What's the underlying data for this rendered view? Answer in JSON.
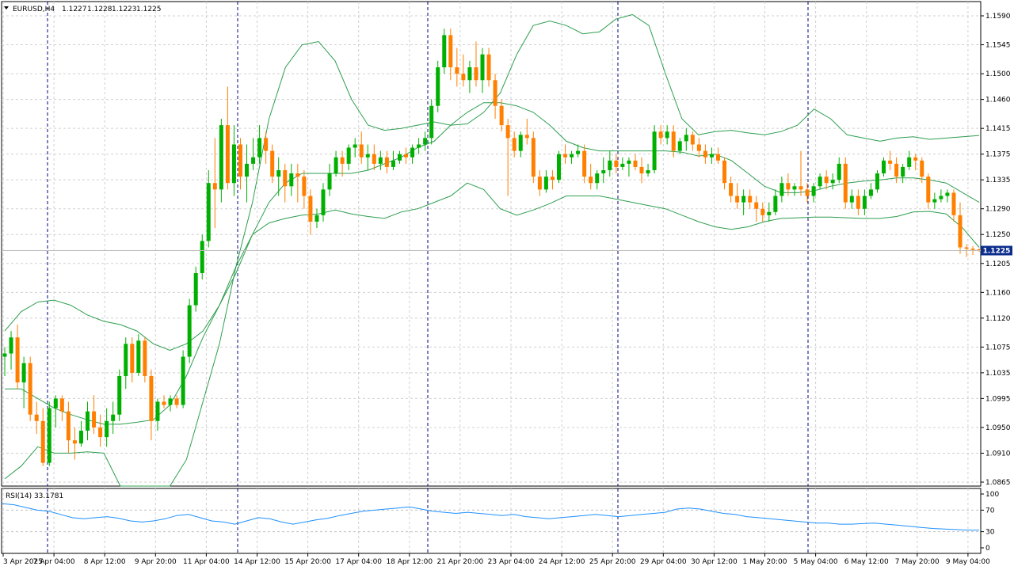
{
  "chart_data": [
    {
      "type": "candlestick",
      "symbol_label": "EURUSD,H4",
      "ohlc_header": [
        "1.1227",
        "1.1228",
        "1.1223",
        "1.1225"
      ],
      "current_price": "1.1225",
      "ylim": [
        1.0865,
        1.159
      ],
      "y_ticks": [
        "1.1590",
        "1.1545",
        "1.1500",
        "1.1460",
        "1.1415",
        "1.1375",
        "1.1335",
        "1.1290",
        "1.1250",
        "1.1205",
        "1.1160",
        "1.1120",
        "1.1075",
        "1.1035",
        "1.0995",
        "1.0950",
        "1.0910",
        "1.0865"
      ],
      "x_ticks": [
        "3 Apr 2025",
        "7 Apr 04:00",
        "8 Apr 12:00",
        "9 Apr 20:00",
        "11 Apr 04:00",
        "14 Apr 12:00",
        "15 Apr 20:00",
        "17 Apr 04:00",
        "18 Apr 12:00",
        "21 Apr 20:00",
        "23 Apr 04:00",
        "24 Apr 12:00",
        "25 Apr 20:00",
        "29 Apr 04:00",
        "30 Apr 12:00",
        "1 May 20:00",
        "5 May 04:00",
        "6 May 12:00",
        "7 May 20:00",
        "9 May 04:00"
      ],
      "grid": true,
      "colors": {
        "bull": "#00b000",
        "bear": "#ff7f00",
        "bands": "#2e9e4f",
        "rsi": "#1e90ff",
        "price_tag": "#0c2d8c"
      },
      "candles": [
        [
          1.106,
          1.1075,
          1.103,
          1.1065
        ],
        [
          1.1065,
          1.11,
          1.104,
          1.109
        ],
        [
          1.109,
          1.111,
          1.101,
          1.102
        ],
        [
          1.102,
          1.106,
          1.098,
          1.105
        ],
        [
          1.105,
          1.106,
          1.096,
          1.097
        ],
        [
          1.097,
          1.099,
          1.094,
          1.096
        ],
        [
          1.096,
          1.098,
          1.089,
          1.0895
        ],
        [
          1.0895,
          1.099,
          1.089,
          1.098
        ],
        [
          1.098,
          1.1,
          1.095,
          1.0995
        ],
        [
          1.0995,
          1.1,
          1.096,
          1.0975
        ],
        [
          1.0975,
          1.099,
          1.091,
          1.093
        ],
        [
          1.093,
          1.095,
          1.09,
          1.0925
        ],
        [
          1.0925,
          1.096,
          1.092,
          1.0945
        ],
        [
          1.0945,
          1.099,
          1.093,
          1.0975
        ],
        [
          1.0975,
          1.1,
          1.094,
          1.095
        ],
        [
          1.095,
          1.097,
          1.092,
          1.0935
        ],
        [
          1.0935,
          1.098,
          1.092,
          1.096
        ],
        [
          1.096,
          1.099,
          1.094,
          1.097
        ],
        [
          1.097,
          1.104,
          1.096,
          1.103
        ],
        [
          1.103,
          1.109,
          1.101,
          1.108
        ],
        [
          1.108,
          1.109,
          1.102,
          1.1035
        ],
        [
          1.1035,
          1.1095,
          1.103,
          1.1085
        ],
        [
          1.1085,
          1.109,
          1.102,
          1.103
        ],
        [
          1.103,
          1.104,
          1.093,
          1.096
        ],
        [
          1.096,
          1.0995,
          1.0945,
          1.099
        ],
        [
          1.099,
          1.1,
          1.098,
          1.0985
        ],
        [
          1.0985,
          1.1,
          1.0975,
          1.0995
        ],
        [
          1.0995,
          1.1,
          1.098,
          1.0985
        ],
        [
          1.0985,
          1.107,
          1.098,
          1.106
        ],
        [
          1.106,
          1.115,
          1.105,
          1.114
        ],
        [
          1.114,
          1.12,
          1.113,
          1.119
        ],
        [
          1.119,
          1.125,
          1.118,
          1.124
        ],
        [
          1.124,
          1.135,
          1.123,
          1.133
        ],
        [
          1.133,
          1.14,
          1.126,
          1.132
        ],
        [
          1.132,
          1.143,
          1.13,
          1.142
        ],
        [
          1.142,
          1.148,
          1.132,
          1.133
        ],
        [
          1.133,
          1.142,
          1.131,
          1.139
        ],
        [
          1.139,
          1.14,
          1.132,
          1.134
        ],
        [
          1.134,
          1.139,
          1.13,
          1.136
        ],
        [
          1.136,
          1.14,
          1.135,
          1.137
        ],
        [
          1.137,
          1.142,
          1.136,
          1.14
        ],
        [
          1.14,
          1.141,
          1.136,
          1.138
        ],
        [
          1.138,
          1.139,
          1.133,
          1.134
        ],
        [
          1.134,
          1.137,
          1.131,
          1.135
        ],
        [
          1.135,
          1.136,
          1.13,
          1.1325
        ],
        [
          1.1325,
          1.136,
          1.131,
          1.1345
        ],
        [
          1.1345,
          1.136,
          1.13,
          1.134
        ],
        [
          1.134,
          1.135,
          1.129,
          1.131
        ],
        [
          1.131,
          1.132,
          1.125,
          1.127
        ],
        [
          1.127,
          1.129,
          1.126,
          1.128
        ],
        [
          1.128,
          1.133,
          1.127,
          1.132
        ],
        [
          1.132,
          1.136,
          1.131,
          1.1345
        ],
        [
          1.1345,
          1.138,
          1.134,
          1.137
        ],
        [
          1.137,
          1.138,
          1.134,
          1.136
        ],
        [
          1.136,
          1.139,
          1.135,
          1.1385
        ],
        [
          1.1385,
          1.14,
          1.137,
          1.139
        ],
        [
          1.139,
          1.141,
          1.136,
          1.137
        ],
        [
          1.137,
          1.139,
          1.135,
          1.1375
        ],
        [
          1.1375,
          1.139,
          1.135,
          1.136
        ],
        [
          1.136,
          1.138,
          1.135,
          1.137
        ],
        [
          1.137,
          1.138,
          1.1345,
          1.1355
        ],
        [
          1.1355,
          1.138,
          1.135,
          1.1365
        ],
        [
          1.1365,
          1.138,
          1.136,
          1.1375
        ],
        [
          1.1375,
          1.1385,
          1.136,
          1.137
        ],
        [
          1.137,
          1.139,
          1.136,
          1.1385
        ],
        [
          1.1385,
          1.14,
          1.1375,
          1.139
        ],
        [
          1.139,
          1.141,
          1.138,
          1.14
        ],
        [
          1.14,
          1.146,
          1.139,
          1.145
        ],
        [
          1.145,
          1.152,
          1.144,
          1.151
        ],
        [
          1.151,
          1.157,
          1.15,
          1.156
        ],
        [
          1.156,
          1.157,
          1.149,
          1.151
        ],
        [
          1.151,
          1.154,
          1.148,
          1.15
        ],
        [
          1.15,
          1.153,
          1.148,
          1.149
        ],
        [
          1.149,
          1.152,
          1.147,
          1.151
        ],
        [
          1.151,
          1.155,
          1.148,
          1.149
        ],
        [
          1.149,
          1.154,
          1.147,
          1.153
        ],
        [
          1.153,
          1.154,
          1.148,
          1.149
        ],
        [
          1.149,
          1.15,
          1.143,
          1.145
        ],
        [
          1.145,
          1.146,
          1.141,
          1.142
        ],
        [
          1.142,
          1.143,
          1.131,
          1.14
        ],
        [
          1.14,
          1.141,
          1.137,
          1.138
        ],
        [
          1.138,
          1.141,
          1.137,
          1.1405
        ],
        [
          1.1405,
          1.143,
          1.139,
          1.14
        ],
        [
          1.14,
          1.141,
          1.133,
          1.134
        ],
        [
          1.134,
          1.135,
          1.131,
          1.132
        ],
        [
          1.132,
          1.135,
          1.1315,
          1.134
        ],
        [
          1.134,
          1.135,
          1.132,
          1.1335
        ],
        [
          1.1335,
          1.138,
          1.133,
          1.1375
        ],
        [
          1.1375,
          1.139,
          1.136,
          1.137
        ],
        [
          1.137,
          1.138,
          1.136,
          1.1375
        ],
        [
          1.1375,
          1.139,
          1.137,
          1.138
        ],
        [
          1.138,
          1.139,
          1.133,
          1.134
        ],
        [
          1.134,
          1.136,
          1.132,
          1.133
        ],
        [
          1.133,
          1.135,
          1.132,
          1.1345
        ],
        [
          1.1345,
          1.137,
          1.133,
          1.135
        ],
        [
          1.135,
          1.138,
          1.134,
          1.1365
        ],
        [
          1.1365,
          1.1375,
          1.1345,
          1.1355
        ],
        [
          1.1355,
          1.137,
          1.135,
          1.136
        ],
        [
          1.136,
          1.137,
          1.134,
          1.1365
        ],
        [
          1.1365,
          1.1375,
          1.135,
          1.1355
        ],
        [
          1.1355,
          1.137,
          1.133,
          1.1345
        ],
        [
          1.1345,
          1.136,
          1.134,
          1.135
        ],
        [
          1.135,
          1.142,
          1.1345,
          1.141
        ],
        [
          1.141,
          1.142,
          1.139,
          1.14
        ],
        [
          1.14,
          1.142,
          1.139,
          1.141
        ],
        [
          1.141,
          1.142,
          1.137,
          1.138
        ],
        [
          1.138,
          1.14,
          1.1375,
          1.1395
        ],
        [
          1.1395,
          1.1415,
          1.138,
          1.1405
        ],
        [
          1.1405,
          1.141,
          1.138,
          1.139
        ],
        [
          1.139,
          1.14,
          1.137,
          1.138
        ],
        [
          1.138,
          1.139,
          1.136,
          1.137
        ],
        [
          1.137,
          1.1385,
          1.136,
          1.1375
        ],
        [
          1.1375,
          1.1385,
          1.136,
          1.1365
        ],
        [
          1.1365,
          1.137,
          1.132,
          1.133
        ],
        [
          1.133,
          1.134,
          1.13,
          1.131
        ],
        [
          1.131,
          1.133,
          1.129,
          1.13
        ],
        [
          1.13,
          1.132,
          1.128,
          1.131
        ],
        [
          1.131,
          1.132,
          1.129,
          1.13
        ],
        [
          1.13,
          1.131,
          1.127,
          1.129
        ],
        [
          1.129,
          1.13,
          1.127,
          1.128
        ],
        [
          1.128,
          1.13,
          1.127,
          1.1285
        ],
        [
          1.1285,
          1.132,
          1.128,
          1.131
        ],
        [
          1.131,
          1.134,
          1.13,
          1.133
        ],
        [
          1.133,
          1.1345,
          1.131,
          1.132
        ],
        [
          1.132,
          1.133,
          1.131,
          1.1325
        ],
        [
          1.1325,
          1.138,
          1.131,
          1.132
        ],
        [
          1.132,
          1.133,
          1.13,
          1.131
        ],
        [
          1.131,
          1.133,
          1.13,
          1.1325
        ],
        [
          1.1325,
          1.1345,
          1.132,
          1.134
        ],
        [
          1.134,
          1.135,
          1.132,
          1.133
        ],
        [
          1.133,
          1.1345,
          1.132,
          1.1335
        ],
        [
          1.1335,
          1.137,
          1.133,
          1.136
        ],
        [
          1.136,
          1.137,
          1.129,
          1.13
        ],
        [
          1.13,
          1.132,
          1.129,
          1.131
        ],
        [
          1.131,
          1.132,
          1.128,
          1.129
        ],
        [
          1.129,
          1.132,
          1.128,
          1.131
        ],
        [
          1.131,
          1.133,
          1.1305,
          1.132
        ],
        [
          1.132,
          1.135,
          1.1315,
          1.1345
        ],
        [
          1.1345,
          1.137,
          1.134,
          1.1365
        ],
        [
          1.1365,
          1.138,
          1.135,
          1.136
        ],
        [
          1.136,
          1.137,
          1.133,
          1.134
        ],
        [
          1.134,
          1.136,
          1.133,
          1.1355
        ],
        [
          1.1355,
          1.138,
          1.135,
          1.137
        ],
        [
          1.137,
          1.1375,
          1.135,
          1.1365
        ],
        [
          1.1365,
          1.137,
          1.133,
          1.134
        ],
        [
          1.134,
          1.1345,
          1.129,
          1.13
        ],
        [
          1.13,
          1.1315,
          1.129,
          1.1305
        ],
        [
          1.1305,
          1.132,
          1.13,
          1.131
        ],
        [
          1.131,
          1.132,
          1.13,
          1.1315
        ],
        [
          1.1315,
          1.132,
          1.127,
          1.128
        ],
        [
          1.128,
          1.13,
          1.122,
          1.123
        ],
        [
          1.123,
          1.1235,
          1.1215,
          1.1228
        ],
        [
          1.1228,
          1.1232,
          1.1218,
          1.1226
        ],
        [
          1.1227,
          1.1228,
          1.1223,
          1.1225
        ]
      ],
      "bollinger": {
        "upper": [
          1.11,
          1.113,
          1.1145,
          1.1148,
          1.114,
          1.1125,
          1.1115,
          1.111,
          1.11,
          1.108,
          1.107,
          1.108,
          1.11,
          1.114,
          1.12,
          1.13,
          1.143,
          1.151,
          1.1545,
          1.155,
          1.152,
          1.146,
          1.142,
          1.1412,
          1.1415,
          1.142,
          1.1425,
          1.142,
          1.1422,
          1.144,
          1.147,
          1.153,
          1.1575,
          1.1582,
          1.1575,
          1.1562,
          1.1565,
          1.1585,
          1.1592,
          1.1575,
          1.15,
          1.143,
          1.1405,
          1.141,
          1.1412,
          1.1408,
          1.1405,
          1.141,
          1.142,
          1.1445,
          1.143,
          1.1405,
          1.14,
          1.1395,
          1.14,
          1.1402,
          1.1398,
          1.14,
          1.1402,
          1.1404
        ],
        "middle": [
          1.101,
          1.101,
          1.0995,
          1.098,
          1.097,
          1.0962,
          1.0955,
          1.0955,
          1.0958,
          1.0962,
          1.0985,
          1.103,
          1.109,
          1.114,
          1.119,
          1.125,
          1.13,
          1.133,
          1.1345,
          1.1345,
          1.1345,
          1.1345,
          1.135,
          1.136,
          1.137,
          1.1385,
          1.1395,
          1.142,
          1.144,
          1.1455,
          1.1455,
          1.145,
          1.144,
          1.142,
          1.1395,
          1.1385,
          1.138,
          1.138,
          1.138,
          1.138,
          1.138,
          1.1378,
          1.1372,
          1.1375,
          1.1365,
          1.1345,
          1.1325,
          1.1315,
          1.1315,
          1.1318,
          1.1325,
          1.133,
          1.1333,
          1.1335,
          1.1338,
          1.1338,
          1.1335,
          1.133,
          1.1315,
          1.13
        ],
        "lower": [
          1.087,
          1.089,
          1.092,
          1.091,
          1.091,
          1.0912,
          1.091,
          1.085,
          1.08,
          1.078,
          1.082,
          1.09,
          1.099,
          1.108,
          1.12,
          1.125,
          1.1268,
          1.1275,
          1.128,
          1.1282,
          1.1288,
          1.1282,
          1.1278,
          1.1275,
          1.1285,
          1.129,
          1.13,
          1.131,
          1.133,
          1.132,
          1.129,
          1.128,
          1.1288,
          1.1298,
          1.131,
          1.131,
          1.131,
          1.1305,
          1.13,
          1.1295,
          1.129,
          1.128,
          1.127,
          1.1262,
          1.1258,
          1.1262,
          1.127,
          1.1275,
          1.1276,
          1.1277,
          1.1277,
          1.1276,
          1.1275,
          1.1275,
          1.1278,
          1.1285,
          1.1286,
          1.1282,
          1.126,
          1.123
        ]
      },
      "rsi": {
        "label": "RSI(14) 33.1781",
        "y_ticks": [
          "100",
          "70",
          "30",
          "0"
        ],
        "ylim": [
          0,
          100
        ],
        "values": [
          82,
          80,
          75,
          70,
          68,
          62,
          56,
          54,
          56,
          58,
          55,
          50,
          48,
          50,
          54,
          60,
          62,
          56,
          50,
          48,
          44,
          50,
          56,
          54,
          48,
          44,
          48,
          52,
          55,
          60,
          64,
          68,
          70,
          72,
          74,
          76,
          72,
          68,
          66,
          64,
          66,
          64,
          62,
          60,
          62,
          58,
          56,
          54,
          56,
          58,
          60,
          62,
          60,
          58,
          60,
          62,
          64,
          66,
          72,
          74,
          72,
          68,
          64,
          62,
          58,
          56,
          54,
          52,
          50,
          48,
          46,
          46,
          44,
          44,
          45,
          46,
          44,
          42,
          40,
          38,
          36,
          35,
          34,
          33,
          33
        ]
      }
    }
  ]
}
